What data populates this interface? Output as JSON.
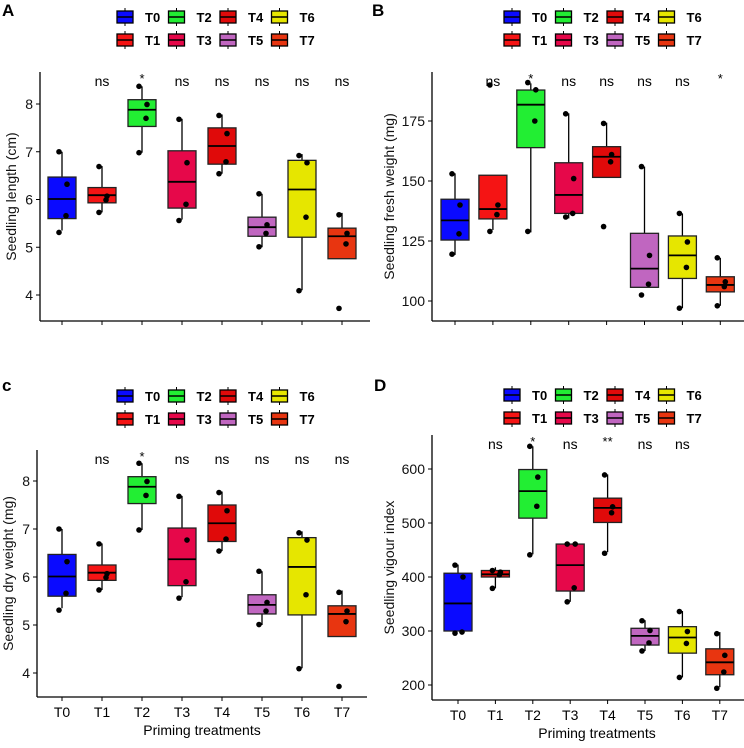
{
  "legend": {
    "groups": [
      "T0",
      "T1",
      "T2",
      "T3",
      "T4",
      "T5",
      "T6",
      "T7"
    ]
  },
  "colors": {
    "T0": "#0a0aff",
    "T1": "#f51414",
    "T2": "#22ee33",
    "T3": "#e6084a",
    "T4": "#e00a0a",
    "T5": "#c066c0",
    "T6": "#e6e600",
    "T7": "#e83510",
    "points": "#000000"
  },
  "chart_data": [
    {
      "type": "box",
      "panel_label": "A",
      "ylabel": "Seedling length (cm)",
      "xlabel": "",
      "categories": [
        "T0",
        "T1",
        "T2",
        "T3",
        "T4",
        "T5",
        "T6",
        "T7"
      ],
      "show_x_tick_labels": false,
      "yticks": [
        4,
        5,
        6,
        7,
        8
      ],
      "ylim": [
        3.55,
        8.75
      ],
      "significance": [
        "",
        "ns",
        "*",
        "ns",
        "ns",
        "ns",
        "ns",
        "ns"
      ],
      "boxes": [
        {
          "q1": 5.6,
          "median": 6.01,
          "q3": 6.47,
          "lo": 5.35,
          "hi": 7.0,
          "points": [
            7.0,
            6.32,
            5.66,
            5.31
          ]
        },
        {
          "q1": 5.93,
          "median": 6.09,
          "q3": 6.25,
          "lo": 5.73,
          "hi": 6.7,
          "points": [
            6.69,
            6.07,
            5.99,
            5.73
          ]
        },
        {
          "q1": 7.53,
          "median": 7.88,
          "q3": 8.09,
          "lo": 6.98,
          "hi": 8.37,
          "points": [
            8.37,
            7.99,
            7.7,
            6.98
          ]
        },
        {
          "q1": 5.82,
          "median": 6.37,
          "q3": 7.02,
          "lo": 5.58,
          "hi": 7.69,
          "points": [
            7.68,
            6.77,
            5.9,
            5.56
          ]
        },
        {
          "q1": 6.74,
          "median": 7.12,
          "q3": 7.5,
          "lo": 6.54,
          "hi": 7.78,
          "points": [
            7.76,
            7.38,
            6.79,
            6.54
          ]
        },
        {
          "q1": 5.23,
          "median": 5.42,
          "q3": 5.63,
          "lo": 5.0,
          "hi": 6.12,
          "points": [
            6.12,
            5.47,
            5.29,
            5.01
          ]
        },
        {
          "q1": 5.21,
          "median": 6.21,
          "q3": 6.82,
          "lo": 4.1,
          "hi": 6.95,
          "points": [
            6.92,
            6.77,
            5.63,
            4.09
          ]
        },
        {
          "q1": 4.76,
          "median": 5.23,
          "q3": 5.4,
          "lo": 4.76,
          "hi": 5.72,
          "points": [
            5.68,
            5.29,
            5.07,
            3.72
          ]
        }
      ]
    },
    {
      "type": "box",
      "panel_label": "B",
      "ylabel": "Seedling fresh weight (mg)",
      "xlabel": "",
      "categories": [
        "T0",
        "T1",
        "T2",
        "T3",
        "T4",
        "T5",
        "T6",
        "T7"
      ],
      "show_x_tick_labels": false,
      "yticks": [
        100,
        125,
        150,
        175
      ],
      "ylim": [
        92,
        196
      ],
      "significance": [
        "",
        "ns",
        "*",
        "ns",
        "ns",
        "ns",
        "ns",
        "*"
      ],
      "boxes": [
        {
          "q1": 125.4,
          "median": 133.6,
          "q3": 142.4,
          "lo": 119.2,
          "hi": 153.2,
          "points": [
            153,
            140,
            128,
            119.5
          ]
        },
        {
          "q1": 134.2,
          "median": 138.3,
          "q3": 152.4,
          "lo": 129.6,
          "hi": 152.4,
          "points": [
            190,
            140,
            136,
            129
          ]
        },
        {
          "q1": 163.9,
          "median": 181.8,
          "q3": 187.9,
          "lo": 128.6,
          "hi": 190.7,
          "points": [
            191,
            188,
            175,
            129
          ]
        },
        {
          "q1": 136.5,
          "median": 144.2,
          "q3": 157.6,
          "lo": 134.4,
          "hi": 178.2,
          "points": [
            178,
            151,
            136.5,
            135
          ]
        },
        {
          "q1": 151.5,
          "median": 160.1,
          "q3": 164.3,
          "lo": 151.5,
          "hi": 174.3,
          "points": [
            174,
            161,
            158,
            131
          ]
        },
        {
          "q1": 105.7,
          "median": 113.5,
          "q3": 128.2,
          "lo": 105.7,
          "hi": 156,
          "points": [
            156,
            119,
            107,
            102.5
          ]
        },
        {
          "q1": 109.4,
          "median": 119,
          "q3": 127.1,
          "lo": 97,
          "hi": 136.5,
          "points": [
            136.5,
            124.6,
            114,
            97
          ]
        },
        {
          "q1": 103.8,
          "median": 106.7,
          "q3": 110.1,
          "lo": 98,
          "hi": 118,
          "points": [
            118,
            108,
            106,
            98
          ]
        }
      ]
    },
    {
      "type": "box",
      "panel_label": "c",
      "ylabel": "Seedling  dry weight (mg)",
      "xlabel": "Priming treatments",
      "categories": [
        "T0",
        "T1",
        "T2",
        "T3",
        "T4",
        "T5",
        "T6",
        "T7"
      ],
      "show_x_tick_labels": true,
      "yticks": [
        4,
        5,
        6,
        7,
        8
      ],
      "ylim": [
        3.55,
        8.75
      ],
      "significance": [
        "",
        "ns",
        "*",
        "ns",
        "ns",
        "ns",
        "ns",
        "ns"
      ],
      "boxes": [
        {
          "q1": 5.6,
          "median": 6.01,
          "q3": 6.47,
          "lo": 5.35,
          "hi": 7.0,
          "points": [
            7.0,
            6.32,
            5.66,
            5.31
          ]
        },
        {
          "q1": 5.93,
          "median": 6.09,
          "q3": 6.25,
          "lo": 5.73,
          "hi": 6.7,
          "points": [
            6.69,
            6.07,
            5.99,
            5.73
          ]
        },
        {
          "q1": 7.53,
          "median": 7.88,
          "q3": 8.09,
          "lo": 6.98,
          "hi": 8.37,
          "points": [
            8.37,
            7.99,
            7.7,
            6.98
          ]
        },
        {
          "q1": 5.82,
          "median": 6.37,
          "q3": 7.02,
          "lo": 5.58,
          "hi": 7.69,
          "points": [
            7.68,
            6.77,
            5.9,
            5.56
          ]
        },
        {
          "q1": 6.74,
          "median": 7.12,
          "q3": 7.5,
          "lo": 6.54,
          "hi": 7.78,
          "points": [
            7.76,
            7.38,
            6.79,
            6.54
          ]
        },
        {
          "q1": 5.23,
          "median": 5.42,
          "q3": 5.63,
          "lo": 5.0,
          "hi": 6.12,
          "points": [
            6.12,
            5.47,
            5.29,
            5.01
          ]
        },
        {
          "q1": 5.21,
          "median": 6.21,
          "q3": 6.82,
          "lo": 4.1,
          "hi": 6.95,
          "points": [
            6.92,
            6.77,
            5.63,
            4.09
          ]
        },
        {
          "q1": 4.76,
          "median": 5.23,
          "q3": 5.4,
          "lo": 4.76,
          "hi": 5.72,
          "points": [
            5.68,
            5.29,
            5.07,
            3.72
          ]
        }
      ]
    },
    {
      "type": "box",
      "panel_label": "D",
      "ylabel": "Seedling vigour index",
      "xlabel": "Priming treatments",
      "categories": [
        "T0",
        "T1",
        "T2",
        "T3",
        "T4",
        "T5",
        "T6",
        "T7"
      ],
      "show_x_tick_labels": true,
      "yticks": [
        200,
        300,
        400,
        500,
        600
      ],
      "ylim": [
        175,
        660
      ],
      "significance": [
        "",
        "ns",
        "*",
        "ns",
        "**",
        "ns",
        "ns",
        ""
      ],
      "boxes": [
        {
          "q1": 300,
          "median": 351,
          "q3": 407,
          "lo": 300,
          "hi": 423,
          "points": [
            422,
            400,
            298,
            296
          ]
        },
        {
          "q1": 400,
          "median": 405,
          "q3": 412,
          "lo": 379,
          "hi": 418,
          "points": [
            412,
            409,
            404,
            379
          ]
        },
        {
          "q1": 509,
          "median": 559,
          "q3": 599,
          "lo": 442,
          "hi": 642,
          "points": [
            642,
            585,
            531,
            441
          ]
        },
        {
          "q1": 374,
          "median": 422,
          "q3": 461,
          "lo": 354,
          "hi": 461,
          "points": [
            461,
            461,
            380,
            354
          ]
        },
        {
          "q1": 501,
          "median": 528,
          "q3": 546,
          "lo": 446,
          "hi": 590,
          "points": [
            589,
            530,
            519,
            444
          ]
        },
        {
          "q1": 274,
          "median": 291,
          "q3": 305,
          "lo": 263,
          "hi": 320,
          "points": [
            319,
            301,
            278,
            263
          ]
        },
        {
          "q1": 259,
          "median": 288,
          "q3": 308,
          "lo": 214,
          "hi": 337,
          "points": [
            336,
            299,
            277,
            214
          ]
        },
        {
          "q1": 219,
          "median": 242,
          "q3": 267,
          "lo": 196,
          "hi": 298,
          "points": [
            295,
            255,
            224,
            194
          ]
        }
      ]
    }
  ]
}
